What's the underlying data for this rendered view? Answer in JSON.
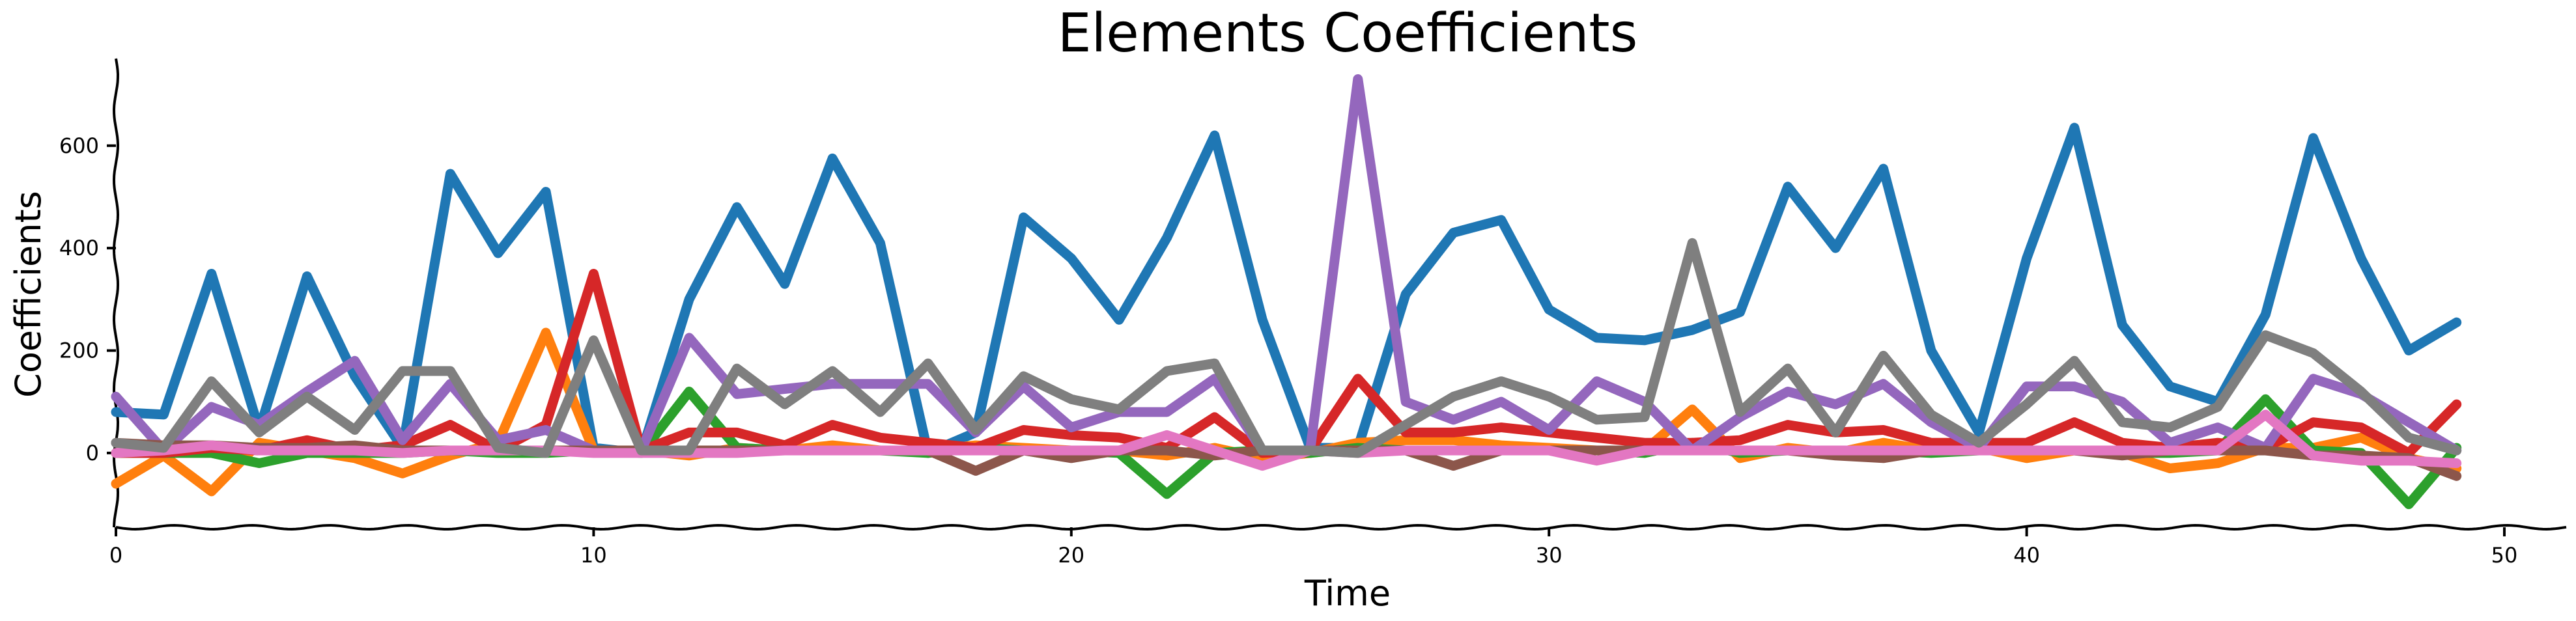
{
  "chart_data": {
    "type": "line",
    "title": "Elements Coefficients",
    "xlabel": "Time",
    "ylabel": "Coefficients",
    "xlim": [
      0,
      51.5
    ],
    "ylim": [
      -145,
      770
    ],
    "xticks": [
      0,
      10,
      20,
      30,
      40,
      50
    ],
    "yticks": [
      0,
      200,
      400,
      600
    ],
    "grid": false,
    "legend": "none",
    "x": [
      0,
      1,
      2,
      3,
      4,
      5,
      6,
      7,
      8,
      9,
      10,
      11,
      12,
      13,
      14,
      15,
      16,
      17,
      18,
      19,
      20,
      21,
      22,
      23,
      24,
      25,
      26,
      27,
      28,
      29,
      30,
      31,
      32,
      33,
      34,
      35,
      36,
      37,
      38,
      39,
      40,
      41,
      42,
      43,
      44,
      45,
      46,
      47,
      48,
      49
    ],
    "series": [
      {
        "color": "#1f77b4",
        "values": [
          80,
          75,
          350,
          45,
          345,
          150,
          10,
          545,
          390,
          510,
          10,
          0,
          300,
          480,
          330,
          575,
          410,
          0,
          40,
          460,
          380,
          260,
          420,
          620,
          260,
          10,
          10,
          310,
          430,
          455,
          280,
          225,
          220,
          240,
          275,
          520,
          400,
          555,
          200,
          40,
          380,
          635,
          250,
          130,
          100,
          270,
          615,
          380,
          200,
          255
        ]
      },
      {
        "color": "#ff7f0e",
        "values": [
          -60,
          -5,
          -75,
          20,
          5,
          -10,
          -40,
          -5,
          20,
          235,
          5,
          5,
          -5,
          10,
          5,
          15,
          5,
          5,
          15,
          10,
          5,
          5,
          -5,
          10,
          -10,
          0,
          20,
          25,
          25,
          15,
          10,
          5,
          5,
          85,
          -10,
          10,
          0,
          20,
          5,
          10,
          -10,
          5,
          0,
          -30,
          -20,
          10,
          10,
          30,
          -10,
          -30
        ]
      },
      {
        "color": "#2ca02c",
        "values": [
          0,
          0,
          0,
          -20,
          0,
          0,
          0,
          5,
          0,
          0,
          5,
          0,
          120,
          10,
          5,
          5,
          5,
          0,
          10,
          5,
          5,
          0,
          -80,
          0,
          5,
          0,
          10,
          5,
          5,
          5,
          5,
          5,
          0,
          20,
          0,
          5,
          5,
          5,
          0,
          5,
          5,
          5,
          0,
          0,
          5,
          105,
          5,
          0,
          -100,
          10
        ]
      },
      {
        "color": "#d62728",
        "values": [
          0,
          0,
          10,
          5,
          25,
          5,
          15,
          55,
          5,
          55,
          350,
          5,
          40,
          40,
          15,
          55,
          30,
          20,
          10,
          45,
          35,
          30,
          10,
          70,
          0,
          5,
          145,
          40,
          40,
          50,
          40,
          30,
          20,
          20,
          25,
          55,
          40,
          45,
          20,
          20,
          20,
          60,
          20,
          10,
          20,
          10,
          60,
          50,
          0,
          95
        ]
      },
      {
        "color": "#9467bd",
        "values": [
          110,
          5,
          90,
          55,
          120,
          180,
          25,
          135,
          25,
          45,
          5,
          5,
          225,
          115,
          125,
          135,
          135,
          135,
          40,
          130,
          50,
          80,
          80,
          145,
          5,
          5,
          730,
          100,
          65,
          100,
          45,
          140,
          100,
          5,
          70,
          120,
          95,
          135,
          60,
          10,
          130,
          130,
          100,
          20,
          50,
          10,
          145,
          115,
          60,
          5
        ]
      },
      {
        "color": "#8c564b",
        "values": [
          20,
          15,
          15,
          10,
          10,
          15,
          5,
          5,
          5,
          5,
          5,
          5,
          5,
          5,
          5,
          5,
          5,
          5,
          -35,
          5,
          -10,
          5,
          5,
          -5,
          5,
          5,
          5,
          5,
          -25,
          5,
          5,
          5,
          5,
          5,
          5,
          5,
          -5,
          -10,
          5,
          5,
          5,
          5,
          -5,
          5,
          5,
          5,
          -5,
          -5,
          -10,
          -45
        ]
      },
      {
        "color": "#e377c2",
        "values": [
          0,
          5,
          15,
          5,
          5,
          5,
          0,
          5,
          5,
          5,
          0,
          0,
          0,
          0,
          5,
          5,
          5,
          5,
          5,
          5,
          5,
          5,
          35,
          5,
          -25,
          5,
          0,
          5,
          5,
          5,
          5,
          -15,
          5,
          5,
          5,
          5,
          5,
          5,
          5,
          5,
          5,
          5,
          5,
          5,
          5,
          75,
          -5,
          -15,
          -15,
          -20
        ]
      },
      {
        "color": "#7f7f7f",
        "values": [
          20,
          10,
          140,
          40,
          110,
          45,
          160,
          160,
          10,
          0,
          220,
          5,
          5,
          165,
          95,
          160,
          80,
          175,
          45,
          150,
          105,
          85,
          160,
          175,
          5,
          5,
          0,
          55,
          110,
          140,
          110,
          65,
          70,
          410,
          80,
          165,
          40,
          190,
          75,
          20,
          95,
          180,
          60,
          50,
          90,
          230,
          195,
          120,
          30,
          5
        ]
      }
    ]
  }
}
